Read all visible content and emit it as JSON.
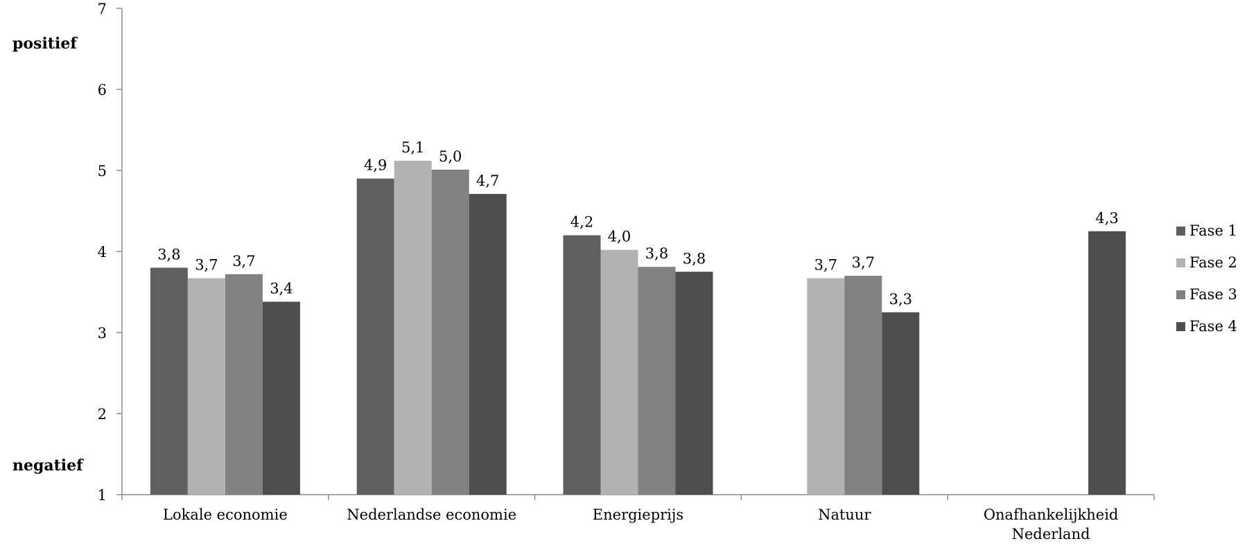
{
  "chart_data": {
    "type": "bar",
    "categories": [
      [
        "Lokale economie"
      ],
      [
        "Nederlandse economie"
      ],
      [
        "Energieprijs"
      ],
      [
        "Natuur"
      ],
      [
        "Onafhankelijkheid",
        "Nederland"
      ]
    ],
    "series": [
      {
        "name": "Fase 1",
        "color": "#5f5f5f",
        "values": [
          3.8,
          4.9,
          4.2,
          null,
          null
        ],
        "labels": [
          "3,8",
          "4,9",
          "4,2",
          "",
          ""
        ]
      },
      {
        "name": "Fase 2",
        "color": "#b2b2b2",
        "values": [
          3.67,
          5.12,
          4.02,
          3.67,
          null
        ],
        "labels": [
          "3,7",
          "5,1",
          "4,0",
          "3,7",
          ""
        ]
      },
      {
        "name": "Fase 3",
        "color": "#818181",
        "values": [
          3.72,
          5.01,
          3.81,
          3.7,
          null
        ],
        "labels": [
          "3,7",
          "5,0",
          "3,8",
          "3,7",
          ""
        ]
      },
      {
        "name": "Fase 4",
        "color": "#4d4d4d",
        "values": [
          3.38,
          4.71,
          3.75,
          3.25,
          4.25
        ],
        "labels": [
          "3,4",
          "4,7",
          "3,8",
          "3,3",
          "4,3"
        ]
      }
    ],
    "ylim": [
      1,
      7
    ],
    "yticks": [
      "1",
      "2",
      "3",
      "4",
      "5",
      "6",
      "7"
    ],
    "ytop_label": "positief",
    "ybottom_label": "negatief",
    "legend_position": "right",
    "grid": false
  }
}
